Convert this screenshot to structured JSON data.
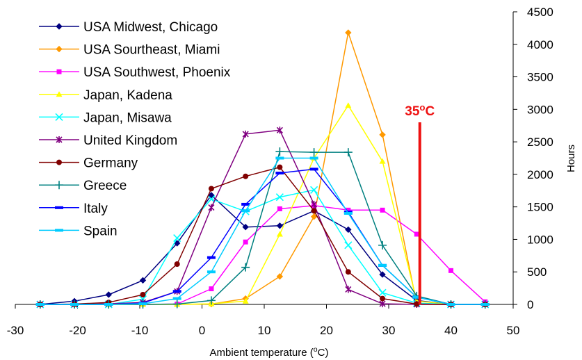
{
  "chart_data": {
    "type": "line",
    "title": "",
    "xlabel": "Ambient temperature (oC)",
    "ylabel": "Hours",
    "xlim": [
      -30,
      50
    ],
    "ylim": [
      0,
      4500
    ],
    "xticks": [
      "-30",
      "-20",
      "-10",
      "0",
      "10",
      "20",
      "30",
      "40",
      "50"
    ],
    "yticks": [
      "0",
      "500",
      "1000",
      "1500",
      "2000",
      "2500",
      "3000",
      "3500",
      "4000",
      "4500"
    ],
    "grid": false,
    "legend_position": "top-left",
    "marker_line": {
      "x": 35,
      "label": "35oC",
      "color": "#ee1111"
    },
    "series": [
      {
        "name": "USA Midwest, Chicago",
        "color": "#000080",
        "marker": "diamond",
        "x": [
          -26,
          -20.5,
          -15,
          -9.5,
          -4,
          1.5,
          7,
          12.5,
          18,
          23.5,
          29,
          34.5,
          40,
          45.5
        ],
        "y": [
          0,
          50,
          150,
          370,
          940,
          1680,
          1190,
          1210,
          1440,
          1150,
          460,
          60,
          0,
          0
        ]
      },
      {
        "name": "USA Sourtheast, Miami",
        "color": "#ff9900",
        "marker": "diamond",
        "x": [
          -26,
          -20.5,
          -15,
          -9.5,
          -4,
          1.5,
          7,
          12.5,
          18,
          23.5,
          29,
          34.5,
          40,
          45.5
        ],
        "y": [
          0,
          0,
          0,
          0,
          0,
          5,
          90,
          430,
          1350,
          4180,
          2610,
          5,
          0,
          0
        ]
      },
      {
        "name": "USA Southwest, Phoenix",
        "color": "#ff00ff",
        "marker": "square",
        "x": [
          -26,
          -20.5,
          -15,
          -9.5,
          -4,
          1.5,
          7,
          12.5,
          18,
          23.5,
          29,
          34.5,
          40,
          45.5
        ],
        "y": [
          0,
          0,
          0,
          0,
          5,
          240,
          960,
          1470,
          1520,
          1450,
          1450,
          1080,
          520,
          40
        ]
      },
      {
        "name": "Japan, Kadena",
        "color": "#ffff00",
        "marker": "triangle",
        "x": [
          -26,
          -20.5,
          -15,
          -9.5,
          -4,
          1.5,
          7,
          12.5,
          18,
          23.5,
          29,
          34.5,
          40,
          45.5
        ],
        "y": [
          0,
          0,
          0,
          0,
          0,
          10,
          50,
          1080,
          2250,
          3060,
          2200,
          50,
          0,
          0
        ]
      },
      {
        "name": "Japan, Misawa",
        "color": "#00ffff",
        "marker": "x",
        "x": [
          -26,
          -20.5,
          -15,
          -9.5,
          -4,
          1.5,
          7,
          12.5,
          18,
          23.5,
          29,
          34.5,
          40,
          45.5
        ],
        "y": [
          0,
          0,
          0,
          80,
          1020,
          1620,
          1430,
          1650,
          1760,
          910,
          180,
          20,
          0,
          0
        ]
      },
      {
        "name": "United Kingdom",
        "color": "#800080",
        "marker": "star",
        "x": [
          -26,
          -20.5,
          -15,
          -9.5,
          -4,
          1.5,
          7,
          12.5,
          18,
          23.5,
          29,
          34.5,
          40,
          45.5
        ],
        "y": [
          0,
          0,
          10,
          30,
          200,
          1490,
          2620,
          2680,
          1540,
          230,
          10,
          0,
          0,
          0
        ]
      },
      {
        "name": "Germany",
        "color": "#800000",
        "marker": "circle",
        "x": [
          -26,
          -20.5,
          -15,
          -9.5,
          -4,
          1.5,
          7,
          12.5,
          18,
          23.5,
          29,
          34.5,
          40,
          45.5
        ],
        "y": [
          0,
          5,
          30,
          150,
          620,
          1780,
          1970,
          2110,
          1440,
          500,
          90,
          5,
          0,
          0
        ]
      },
      {
        "name": "Greece",
        "color": "#008080",
        "marker": "plus",
        "x": [
          -26,
          -20.5,
          -15,
          -9.5,
          -4,
          1.5,
          7,
          12.5,
          18,
          23.5,
          29,
          34.5,
          40,
          45.5
        ],
        "y": [
          0,
          0,
          0,
          0,
          5,
          60,
          570,
          2350,
          2340,
          2340,
          910,
          130,
          0,
          0
        ]
      },
      {
        "name": "Italy",
        "color": "#0000ff",
        "marker": "dash",
        "x": [
          -26,
          -20.5,
          -15,
          -9.5,
          -4,
          1.5,
          7,
          12.5,
          18,
          23.5,
          29,
          34.5,
          40,
          45.5
        ],
        "y": [
          0,
          0,
          0,
          20,
          200,
          720,
          1540,
          2020,
          2080,
          1420,
          600,
          110,
          0,
          0
        ]
      },
      {
        "name": "Spain",
        "color": "#00ccff",
        "marker": "dash",
        "x": [
          -26,
          -20.5,
          -15,
          -9.5,
          -4,
          1.5,
          7,
          12.5,
          18,
          23.5,
          29,
          34.5,
          40,
          45.5
        ],
        "y": [
          0,
          0,
          0,
          10,
          90,
          500,
          1440,
          2250,
          2250,
          1400,
          600,
          110,
          0,
          0
        ]
      }
    ]
  }
}
